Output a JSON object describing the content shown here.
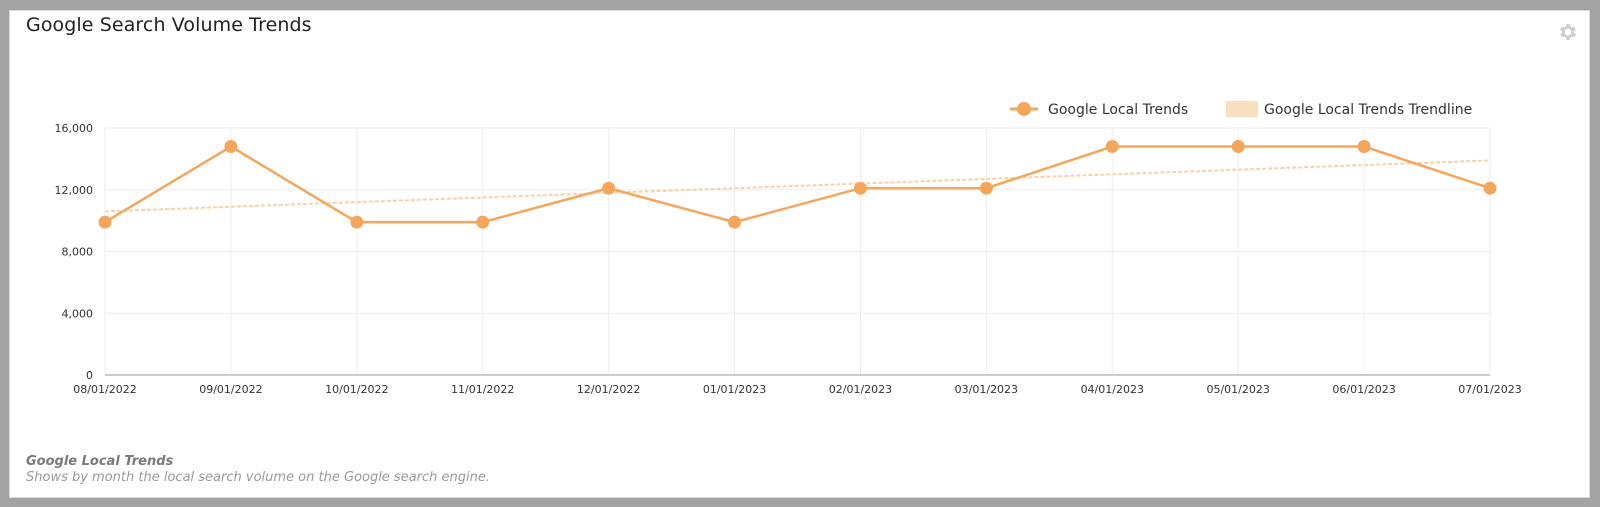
{
  "widget": {
    "title": "Google Search Volume Trends",
    "settings_icon": "gear-icon",
    "footer_title": "Google Local Trends",
    "footer_description": "Shows by month the local search volume on the Google search engine."
  },
  "legend": {
    "items": [
      {
        "label": "Google Local Trends",
        "type": "line-marker",
        "color": "#f5a65b"
      },
      {
        "label": "Google Local Trends Trendline",
        "type": "swatch",
        "color": "#f8dfc0"
      }
    ]
  },
  "colors": {
    "series": "#f5a65b",
    "trendline": "#f6c690",
    "grid": "#eeeeee",
    "axis": "#bbbbbb"
  },
  "chart_data": {
    "type": "line",
    "title": "Google Search Volume Trends",
    "xlabel": "",
    "ylabel": "",
    "categories": [
      "08/01/2022",
      "09/01/2022",
      "10/01/2022",
      "11/01/2022",
      "12/01/2022",
      "01/01/2023",
      "02/01/2023",
      "03/01/2023",
      "04/01/2023",
      "05/01/2023",
      "06/01/2023",
      "07/01/2023"
    ],
    "series": [
      {
        "name": "Google Local Trends",
        "values": [
          9900,
          14800,
          9900,
          9900,
          12100,
          9900,
          12100,
          12100,
          14800,
          14800,
          14800,
          12100
        ]
      },
      {
        "name": "Google Local Trends Trendline",
        "values": [
          10600,
          10900,
          11200,
          11500,
          11800,
          12100,
          12400,
          12700,
          13000,
          13300,
          13600,
          13900
        ]
      }
    ],
    "yticks": [
      0,
      4000,
      8000,
      12000,
      16000
    ],
    "ytick_labels": [
      "0",
      "4,000",
      "8,000",
      "12,000",
      "16,000"
    ],
    "ylim": [
      0,
      16000
    ],
    "grid": true,
    "legend_position": "top-right"
  }
}
